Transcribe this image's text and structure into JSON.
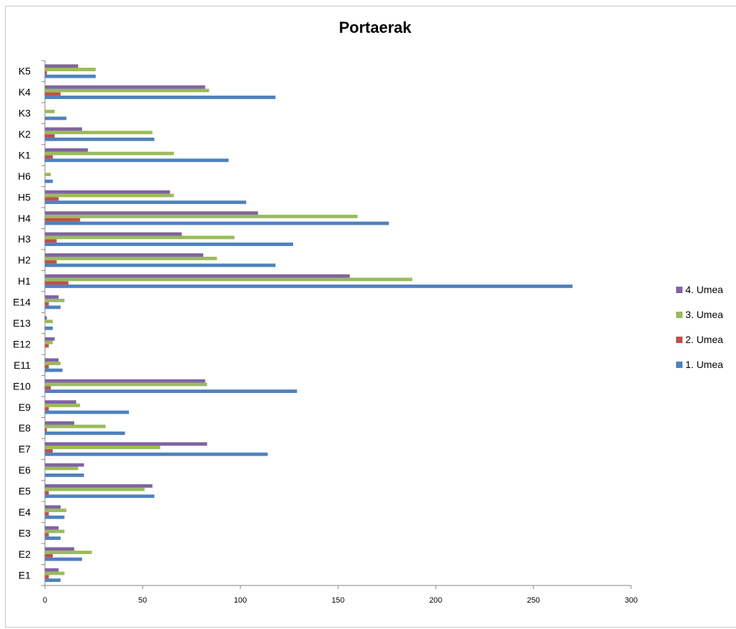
{
  "chart_data": {
    "type": "bar",
    "orientation": "horizontal",
    "title": "Portaerak",
    "categories": [
      "E1",
      "E2",
      "E3",
      "E4",
      "E5",
      "E6",
      "E7",
      "E8",
      "E9",
      "E10",
      "E11",
      "E12",
      "E13",
      "E14",
      "H1",
      "H2",
      "H3",
      "H4",
      "H5",
      "H6",
      "K1",
      "K2",
      "K3",
      "K4",
      "K5"
    ],
    "series": [
      {
        "name": "1. Umea",
        "color": "#4F81BD",
        "values": [
          8,
          19,
          8,
          10,
          56,
          20,
          114,
          41,
          43,
          129,
          9,
          0,
          4,
          8,
          270,
          118,
          127,
          176,
          103,
          4,
          94,
          56,
          11,
          118,
          26
        ]
      },
      {
        "name": "2. Umea",
        "color": "#C0504D",
        "values": [
          2,
          4,
          2,
          2,
          2,
          0,
          4,
          1,
          2,
          3,
          2,
          2,
          0,
          2,
          12,
          6,
          6,
          18,
          7,
          0,
          4,
          5,
          0,
          8,
          1
        ]
      },
      {
        "name": "3. Umea",
        "color": "#9BBB59",
        "values": [
          10,
          24,
          10,
          11,
          51,
          17,
          59,
          31,
          18,
          83,
          8,
          4,
          4,
          10,
          188,
          88,
          97,
          160,
          66,
          3,
          66,
          55,
          5,
          84,
          26
        ]
      },
      {
        "name": "4. Umea",
        "color": "#8064A2",
        "values": [
          7,
          15,
          7,
          8,
          55,
          20,
          83,
          15,
          16,
          82,
          7,
          5,
          1,
          7,
          156,
          81,
          70,
          109,
          64,
          0,
          22,
          19,
          0,
          82,
          17
        ]
      }
    ],
    "x_ticks": [
      "0",
      "50",
      "100",
      "150",
      "200",
      "250",
      "300"
    ],
    "xlim": [
      0,
      300
    ],
    "grid": false,
    "legend_position": "right",
    "legend_order": [
      "4. Umea",
      "3. Umea",
      "2. Umea",
      "1. Umea"
    ]
  }
}
